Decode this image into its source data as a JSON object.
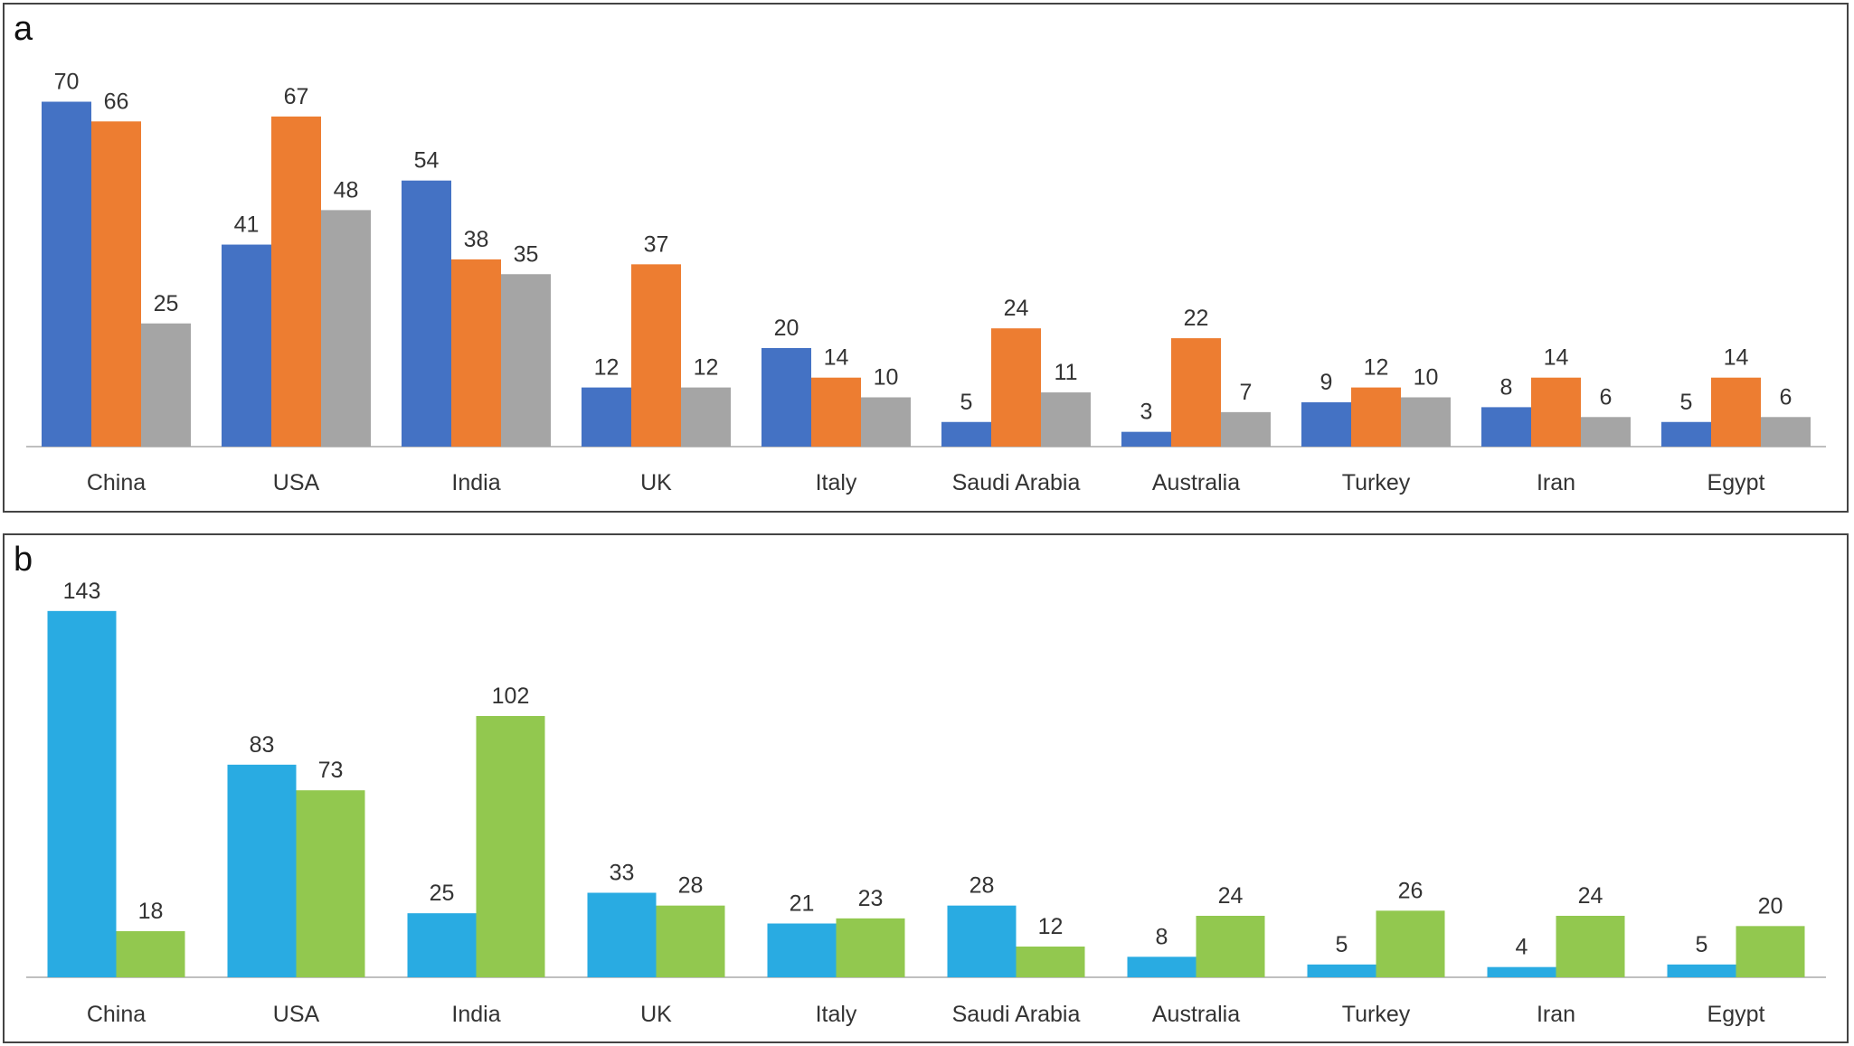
{
  "chart_data": [
    {
      "panel_label": "a",
      "type": "bar",
      "categories": [
        "China",
        "USA",
        "India",
        "UK",
        "Italy",
        "Saudi Arabia",
        "Australia",
        "Turkey",
        "Iran",
        "Egypt"
      ],
      "series": [
        {
          "color": "#4472c4",
          "values": [
            70,
            41,
            54,
            12,
            20,
            5,
            3,
            9,
            8,
            5
          ]
        },
        {
          "color": "#ed7d31",
          "values": [
            66,
            67,
            38,
            37,
            14,
            24,
            22,
            12,
            14,
            14
          ]
        },
        {
          "color": "#a5a5a5",
          "values": [
            25,
            48,
            35,
            12,
            10,
            11,
            7,
            10,
            6,
            6
          ]
        }
      ],
      "ylim": [
        0,
        80
      ],
      "grid": false,
      "legend": "none",
      "title": "",
      "xlabel": "",
      "ylabel": ""
    },
    {
      "panel_label": "b",
      "type": "bar",
      "categories": [
        "China",
        "USA",
        "India",
        "UK",
        "Italy",
        "Saudi Arabia",
        "Australia",
        "Turkey",
        "Iran",
        "Egypt"
      ],
      "series": [
        {
          "color": "#29abe2",
          "values": [
            143,
            83,
            25,
            33,
            21,
            28,
            8,
            5,
            4,
            5
          ]
        },
        {
          "color": "#92c84f",
          "values": [
            18,
            73,
            102,
            28,
            23,
            12,
            24,
            26,
            24,
            20
          ]
        }
      ],
      "ylim": [
        0,
        150
      ],
      "grid": false,
      "legend": "none",
      "title": "",
      "xlabel": "",
      "ylabel": ""
    }
  ]
}
